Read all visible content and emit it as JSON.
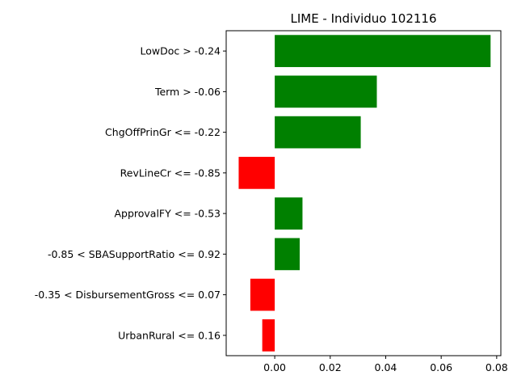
{
  "chart_data": {
    "type": "bar",
    "orientation": "horizontal",
    "title": "LIME - Individuo 102116",
    "xlabel": "",
    "ylabel": "",
    "categories": [
      "LowDoc > -0.24",
      "Term > -0.06",
      "ChgOffPrinGr <= -0.22",
      "RevLineCr <= -0.85",
      "ApprovalFY <= -0.53",
      "-0.85 < SBASupportRatio <= 0.92",
      "-0.35 < DisbursementGross <= 0.07",
      "UrbanRural <= 0.16"
    ],
    "values": [
      0.0778,
      0.0368,
      0.031,
      -0.013,
      0.01,
      0.009,
      -0.0088,
      -0.0045
    ],
    "xlim": [
      -0.0175,
      0.0815
    ],
    "xticks": [
      0.0,
      0.02,
      0.04,
      0.06,
      0.08
    ],
    "xtick_labels": [
      "0.00",
      "0.02",
      "0.04",
      "0.06",
      "0.08"
    ],
    "grid": false,
    "legend": "none",
    "colors": {
      "positive": "#008000",
      "negative": "#ff0000"
    }
  }
}
